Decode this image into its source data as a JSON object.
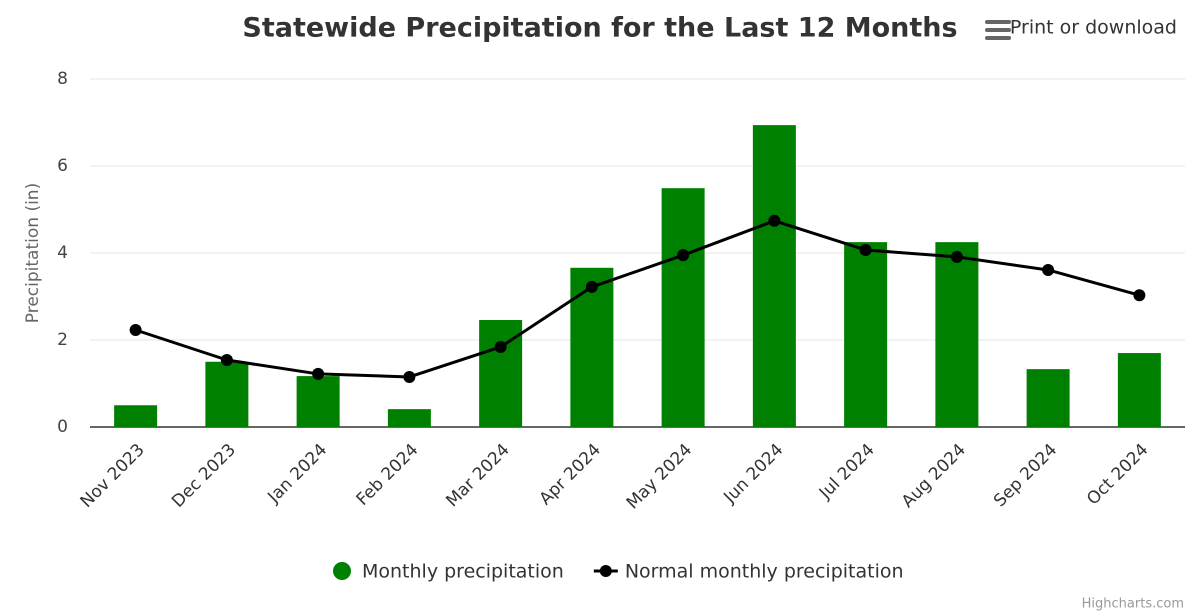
{
  "chart_data": {
    "type": "combo",
    "title": "Statewide Precipitation for the Last 12 Months",
    "y_axis_label": "Precipitation (in)",
    "categories": [
      "Nov 2023",
      "Dec 2023",
      "Jan 2024",
      "Feb 2024",
      "Mar 2024",
      "Apr 2024",
      "May 2024",
      "Jun 2024",
      "Jul 2024",
      "Aug 2024",
      "Sep 2024",
      "Oct 2024"
    ],
    "series": [
      {
        "name": "Monthly precipitation",
        "type": "bar",
        "color": "#008000",
        "values": [
          0.5,
          1.5,
          1.17,
          0.41,
          2.46,
          3.66,
          5.49,
          6.94,
          4.25,
          4.25,
          1.33,
          1.7
        ]
      },
      {
        "name": "Normal monthly precipitation",
        "type": "line",
        "color": "#000000",
        "values": [
          2.23,
          1.54,
          1.22,
          1.15,
          1.84,
          3.22,
          3.95,
          4.74,
          4.07,
          3.91,
          3.61,
          3.03
        ]
      }
    ],
    "ylim": [
      0,
      8
    ],
    "yticks": [
      0,
      2,
      4,
      6,
      8
    ],
    "grid": true
  },
  "export_menu": "Print or download",
  "credits": "Highcharts.com"
}
